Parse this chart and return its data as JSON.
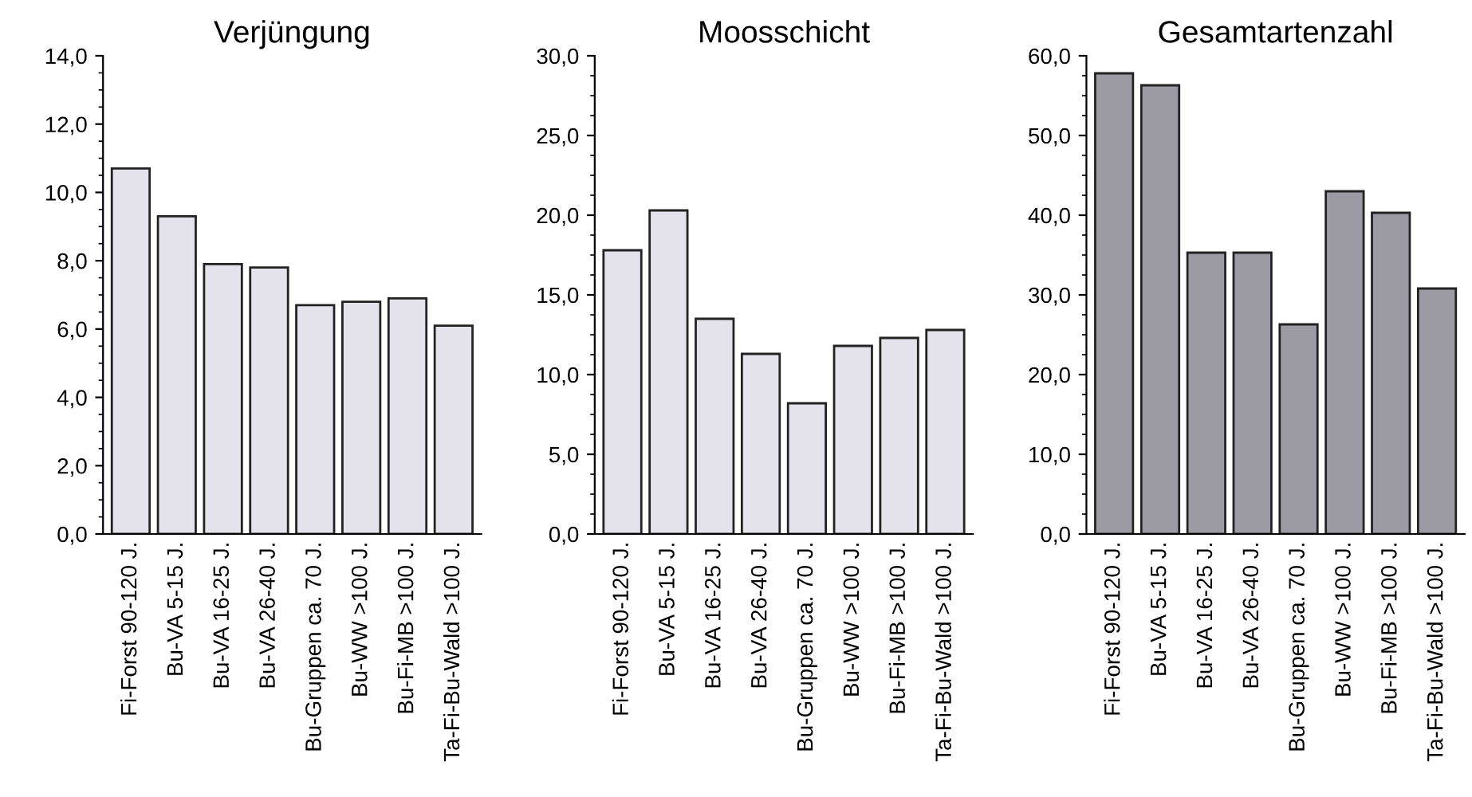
{
  "chart_data": [
    {
      "type": "bar",
      "title": "Verjüngung",
      "categories": [
        "Fi-Forst 90-120 J.",
        "Bu-VA 5-15 J.",
        "Bu-VA 16-25 J.",
        "Bu-VA 26-40 J.",
        "Bu-Gruppen ca. 70 J.",
        "Bu-WW >100 J.",
        "Bu-Fi-MB >100 J.",
        "Ta-Fi-Bu-Wald >100 J."
      ],
      "values": [
        10.7,
        9.3,
        7.9,
        7.8,
        6.7,
        6.8,
        6.9,
        6.1
      ],
      "color": "#e4e2ea",
      "ylim": [
        0,
        14
      ],
      "yticks": [
        {
          "value": 0,
          "label": "0,0"
        },
        {
          "value": 2,
          "label": "2,0"
        },
        {
          "value": 4,
          "label": "4,0"
        },
        {
          "value": 6,
          "label": "6,0"
        },
        {
          "value": 8,
          "label": "8,0"
        },
        {
          "value": 10,
          "label": "10,0"
        },
        {
          "value": 12,
          "label": "12,0"
        },
        {
          "value": 14,
          "label": "14,0"
        }
      ],
      "grid": false
    },
    {
      "type": "bar",
      "title": "Moosschicht",
      "categories": [
        "Fi-Forst 90-120 J.",
        "Bu-VA 5-15 J.",
        "Bu-VA 16-25 J.",
        "Bu-VA 26-40 J.",
        "Bu-Gruppen ca. 70 J.",
        "Bu-WW >100 J.",
        "Bu-Fi-MB >100 J.",
        "Ta-Fi-Bu-Wald >100 J."
      ],
      "values": [
        17.8,
        20.3,
        13.5,
        11.3,
        8.2,
        11.8,
        12.3,
        12.8
      ],
      "color": "#e4e2ea",
      "ylim": [
        0,
        30
      ],
      "yticks": [
        {
          "value": 0,
          "label": "0,0"
        },
        {
          "value": 5,
          "label": "5,0"
        },
        {
          "value": 10,
          "label": "10,0"
        },
        {
          "value": 15,
          "label": "15,0"
        },
        {
          "value": 20,
          "label": "20,0"
        },
        {
          "value": 25,
          "label": "25,0"
        },
        {
          "value": 30,
          "label": "30,0"
        }
      ],
      "grid": false
    },
    {
      "type": "bar",
      "title": "Gesamtartenzahl",
      "categories": [
        "Fi-Forst 90-120 J.",
        "Bu-VA 5-15 J.",
        "Bu-VA 16-25 J.",
        "Bu-VA 26-40 J.",
        "Bu-Gruppen ca. 70 J.",
        "Bu-WW >100 J.",
        "Bu-Fi-MB >100 J.",
        "Ta-Fi-Bu-Wald >100 J."
      ],
      "values": [
        57.8,
        56.3,
        35.3,
        35.3,
        26.3,
        43.0,
        40.3,
        30.8
      ],
      "color": "#9c9aa2",
      "ylim": [
        0,
        60
      ],
      "yticks": [
        {
          "value": 0,
          "label": "0,0"
        },
        {
          "value": 10,
          "label": "10,0"
        },
        {
          "value": 20,
          "label": "20,0"
        },
        {
          "value": 30,
          "label": "30,0"
        },
        {
          "value": 40,
          "label": "40,0"
        },
        {
          "value": 50,
          "label": "50,0"
        },
        {
          "value": 60,
          "label": "60,0"
        }
      ],
      "grid": false
    }
  ]
}
